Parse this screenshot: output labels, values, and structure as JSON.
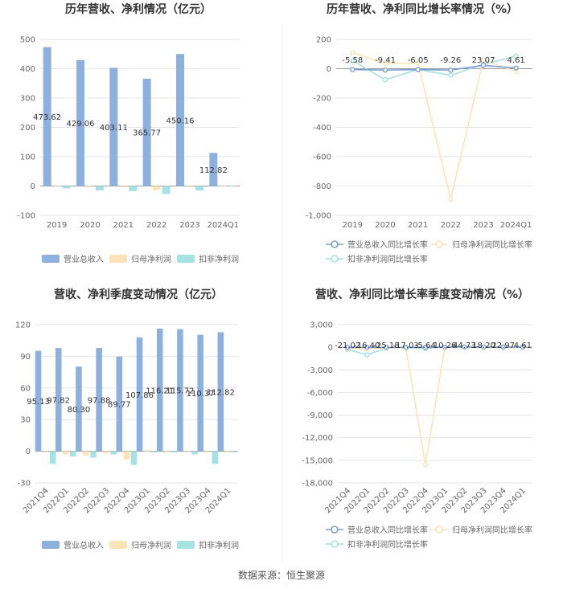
{
  "source_text": "数据来源：恒生聚源",
  "colors": {
    "revenue": "#8eb0de",
    "net_profit": "#fde3b8",
    "deducted_profit": "#a6e1e4",
    "revenue_line": "#7b9fd4",
    "grid": "#e6e6e6"
  },
  "chart_data": [
    {
      "id": "annual-bar",
      "type": "bar",
      "title": "历年营收、净利情况（亿元）",
      "categories": [
        "2019",
        "2020",
        "2021",
        "2022",
        "2023",
        "2024Q1"
      ],
      "yticks": [
        500,
        400,
        300,
        200,
        100,
        0,
        -100
      ],
      "ylim": [
        -100,
        500
      ],
      "series": [
        {
          "name": "营业总收入",
          "values": [
            473.62,
            429.06,
            403.11,
            365.77,
            450.16,
            112.82
          ],
          "labels": [
            "473.62",
            "429.06",
            "403.11",
            "365.77",
            "450.16",
            "112.82"
          ]
        },
        {
          "name": "归母净利润",
          "values": [
            -2,
            -3,
            -4,
            -14,
            -3,
            -1
          ]
        },
        {
          "name": "扣非净利润",
          "values": [
            -8,
            -15,
            -17,
            -27,
            -15,
            -1
          ]
        }
      ],
      "legend_position": "bottom"
    },
    {
      "id": "annual-line",
      "type": "line",
      "title": "历年营收、净利同比增长率情况（%）",
      "categories": [
        "2019",
        "2020",
        "2021",
        "2022",
        "2023",
        "2024Q1"
      ],
      "yticks": [
        "200",
        "0",
        "-200",
        "-400",
        "-600",
        "-800",
        "-1,000"
      ],
      "ylim": [
        -1000,
        200
      ],
      "series": [
        {
          "name": "营业总收入同比增长率",
          "values": [
            -5.58,
            -9.41,
            -6.05,
            -9.26,
            23.07,
            4.61
          ],
          "labels": [
            "-5.58",
            "-9.41",
            "-6.05",
            "-9.26",
            "23.07",
            "4.61"
          ]
        },
        {
          "name": "归母净利润同比增长率",
          "values": [
            110,
            35,
            40,
            -890,
            60,
            -20
          ]
        },
        {
          "name": "扣非净利润同比增长率",
          "values": [
            55,
            -75,
            -5,
            -45,
            30,
            85
          ]
        }
      ],
      "legend_position": "bottom"
    },
    {
      "id": "quarter-bar",
      "type": "bar",
      "title": "营收、净利季度变动情况（亿元）",
      "categories": [
        "2021Q4",
        "2022Q1",
        "2022Q2",
        "2022Q3",
        "2022Q4",
        "2023Q1",
        "2023Q2",
        "2023Q3",
        "2023Q4",
        "2024Q1"
      ],
      "yticks": [
        120,
        90,
        60,
        30,
        0,
        -30
      ],
      "ylim": [
        -30,
        120
      ],
      "series": [
        {
          "name": "营业总收入",
          "values": [
            95.13,
            97.82,
            80.3,
            97.88,
            89.77,
            107.86,
            116.21,
            115.72,
            110.37,
            112.82
          ],
          "labels": [
            "95.13",
            "97.82",
            "80.30",
            "97.88",
            "89.77",
            "107.86",
            "116.21",
            "115.72",
            "110.37",
            "112.82"
          ]
        },
        {
          "name": "归母净利润",
          "values": [
            -1,
            -3,
            -4,
            -2,
            -8,
            1,
            -1,
            -1,
            -1,
            -1
          ]
        },
        {
          "name": "扣非净利润",
          "values": [
            -12,
            -5,
            -6,
            -3,
            -13,
            -1,
            -1,
            -3,
            -12,
            -1
          ]
        }
      ],
      "legend_position": "bottom"
    },
    {
      "id": "quarter-line",
      "type": "line",
      "title": "营收、净利同比增长率季度变动情况（%）",
      "categories": [
        "2021Q4",
        "2022Q1",
        "2022Q2",
        "2022Q3",
        "2022Q4",
        "2023Q1",
        "2023Q2",
        "2023Q3",
        "2023Q4",
        "2024Q1"
      ],
      "yticks": [
        "3,000",
        "0",
        "-3,000",
        "-6,000",
        "-9,000",
        "-12,000",
        "-15,000",
        "-18,000"
      ],
      "ylim": [
        -18000,
        3000
      ],
      "series": [
        {
          "name": "营业总收入同比增长率",
          "values": [
            -21.02,
            -16.4,
            -25.18,
            -17.03,
            -5.64,
            10.26,
            44.73,
            18.2,
            22.97,
            4.61
          ],
          "labels": [
            "-21.02",
            "-16.40",
            "-25.18",
            "-17.03",
            "-5.64",
            "10.26",
            "44.73",
            "18.20",
            "22.97",
            "4.61"
          ]
        },
        {
          "name": "归母净利润同比增长率",
          "values": [
            -150,
            -250,
            -60,
            -80,
            -15600,
            50,
            30,
            40,
            30,
            20
          ]
        },
        {
          "name": "扣非净利润同比增长率",
          "values": [
            -300,
            -1000,
            -100,
            -50,
            -150,
            40,
            20,
            10,
            15,
            80
          ]
        }
      ],
      "legend_position": "bottom"
    }
  ]
}
